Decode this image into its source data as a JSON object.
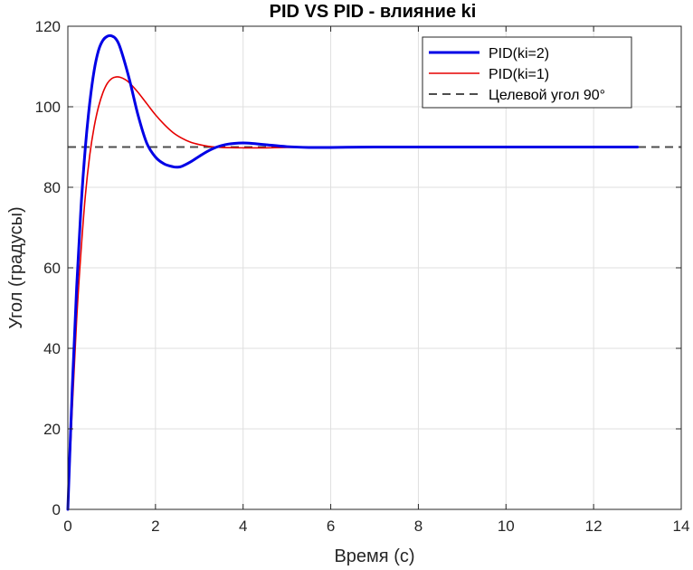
{
  "chart_data": {
    "type": "line",
    "title": "PID VS PID - влияние ki",
    "xlabel": "Время (с)",
    "ylabel": "Угол (градусы)",
    "xlim": [
      0,
      14
    ],
    "ylim": [
      0,
      120
    ],
    "xticks": [
      "0",
      "2",
      "4",
      "6",
      "8",
      "10",
      "12",
      "14"
    ],
    "yticks": [
      "0",
      "20",
      "40",
      "60",
      "80",
      "100",
      "120"
    ],
    "grid": true,
    "legend_position": "top-right",
    "series": [
      {
        "name": "PID(ki=2)",
        "color": "#0000e6",
        "style": "solid-thick",
        "x": [
          0,
          0.1,
          0.2,
          0.3,
          0.4,
          0.5,
          0.6,
          0.7,
          0.8,
          0.9,
          1.0,
          1.1,
          1.2,
          1.4,
          1.6,
          1.8,
          2.0,
          2.2,
          2.4,
          2.5,
          2.6,
          2.8,
          3.0,
          3.2,
          3.4,
          3.6,
          3.8,
          4.0,
          4.2,
          4.5,
          5.0,
          5.5,
          6.0,
          7.0,
          8.0,
          9.0,
          10.0,
          11.0,
          12.0,
          13.0
        ],
        "y": [
          0,
          30,
          55,
          75,
          90,
          101,
          109,
          114,
          116.5,
          117.5,
          117.6,
          116.8,
          114.5,
          107,
          98,
          91,
          87.5,
          85.8,
          85.1,
          85.0,
          85.2,
          86.3,
          87.7,
          89.0,
          90.0,
          90.6,
          90.9,
          91.0,
          90.9,
          90.6,
          90.1,
          89.9,
          89.9,
          90.0,
          90.0,
          90.0,
          90.0,
          90.0,
          90.0,
          90.0
        ]
      },
      {
        "name": "PID(ki=1)",
        "color": "#e60000",
        "style": "solid",
        "x": [
          0,
          0.1,
          0.2,
          0.3,
          0.4,
          0.5,
          0.6,
          0.7,
          0.8,
          0.9,
          1.0,
          1.1,
          1.2,
          1.3,
          1.4,
          1.6,
          1.8,
          2.0,
          2.2,
          2.4,
          2.6,
          2.8,
          3.0,
          3.2,
          3.5,
          4.0,
          4.5,
          5.0,
          6.0,
          7.0,
          8.0,
          9.0,
          10.0,
          11.0,
          12.0,
          13.0
        ],
        "y": [
          0,
          25,
          47,
          64,
          78,
          88,
          95,
          100,
          103.5,
          105.8,
          107.0,
          107.4,
          107.3,
          106.8,
          106.0,
          103.6,
          100.8,
          98.0,
          95.6,
          93.6,
          92.2,
          91.2,
          90.6,
          90.2,
          89.9,
          89.8,
          89.8,
          89.9,
          90.0,
          90.0,
          90.0,
          90.0,
          90.0,
          90.0,
          90.0,
          90.0
        ]
      },
      {
        "name": "Целевой угол 90°",
        "color": "#4d4d4d",
        "style": "dashed",
        "x": [
          0,
          14
        ],
        "y": [
          90,
          90
        ]
      }
    ]
  }
}
